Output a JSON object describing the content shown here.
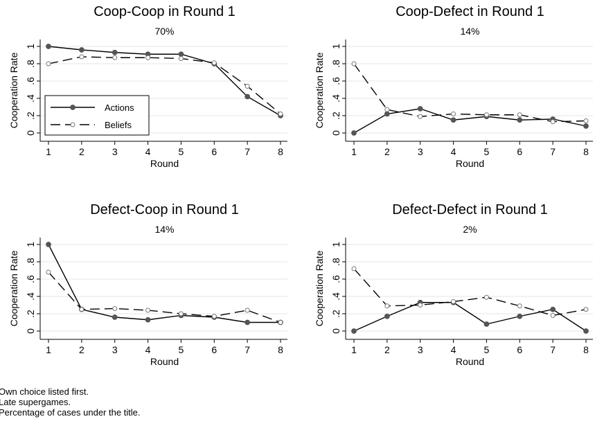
{
  "chart_data": [
    {
      "type": "line",
      "title": "Coop-Coop in Round 1",
      "subtitle": "70%",
      "xlabel": "Round",
      "ylabel": "Cooperation Rate",
      "x": [
        1,
        2,
        3,
        4,
        5,
        6,
        7,
        8
      ],
      "xlim": [
        1,
        8
      ],
      "ylim": [
        0,
        1
      ],
      "yticks": [
        "0",
        ".2",
        ".4",
        ".6",
        ".8",
        "1"
      ],
      "grid": true,
      "legend": "bottom-left",
      "series": [
        {
          "name": "Actions",
          "values": [
            1.0,
            0.96,
            0.93,
            0.91,
            0.91,
            0.8,
            0.42,
            0.2
          ]
        },
        {
          "name": "Beliefs",
          "values": [
            0.8,
            0.88,
            0.87,
            0.87,
            0.86,
            0.81,
            0.54,
            0.22
          ]
        }
      ]
    },
    {
      "type": "line",
      "title": "Coop-Defect in Round 1",
      "subtitle": "14%",
      "xlabel": "Round",
      "ylabel": "Cooperation Rate",
      "x": [
        1,
        2,
        3,
        4,
        5,
        6,
        7,
        8
      ],
      "xlim": [
        1,
        8
      ],
      "ylim": [
        0,
        1
      ],
      "yticks": [
        "0",
        ".2",
        ".4",
        ".6",
        ".8",
        "1"
      ],
      "grid": true,
      "series": [
        {
          "values": [
            0.0,
            0.22,
            0.28,
            0.15,
            0.19,
            0.15,
            0.16,
            0.08
          ]
        },
        {
          "values": [
            0.8,
            0.27,
            0.19,
            0.22,
            0.21,
            0.21,
            0.13,
            0.14
          ]
        }
      ]
    },
    {
      "type": "line",
      "title": "Defect-Coop in Round 1",
      "subtitle": "14%",
      "xlabel": "Round",
      "ylabel": "Cooperation Rate",
      "x": [
        1,
        2,
        3,
        4,
        5,
        6,
        7,
        8
      ],
      "xlim": [
        1,
        8
      ],
      "ylim": [
        0,
        1
      ],
      "yticks": [
        "0",
        ".2",
        ".4",
        ".6",
        ".8",
        "1"
      ],
      "grid": true,
      "series": [
        {
          "values": [
            1.0,
            0.25,
            0.16,
            0.13,
            0.18,
            0.16,
            0.1,
            0.1
          ]
        },
        {
          "values": [
            0.68,
            0.25,
            0.26,
            0.24,
            0.2,
            0.17,
            0.24,
            0.1
          ]
        }
      ]
    },
    {
      "type": "line",
      "title": "Defect-Defect in Round 1",
      "subtitle": "2%",
      "xlabel": "Round",
      "ylabel": "Cooperation Rate",
      "x": [
        1,
        2,
        3,
        4,
        5,
        6,
        7,
        8
      ],
      "xlim": [
        1,
        8
      ],
      "ylim": [
        0,
        1
      ],
      "yticks": [
        "0",
        ".2",
        ".4",
        ".6",
        ".8",
        "1"
      ],
      "grid": true,
      "series": [
        {
          "values": [
            0.0,
            0.17,
            0.33,
            0.33,
            0.08,
            0.17,
            0.25,
            0.0
          ]
        },
        {
          "values": [
            0.72,
            0.29,
            0.3,
            0.34,
            0.39,
            0.29,
            0.18,
            0.25
          ]
        }
      ]
    }
  ],
  "notes": [
    "Own choice listed first.",
    "Late supergames.",
    "Percentage of cases under the title."
  ]
}
